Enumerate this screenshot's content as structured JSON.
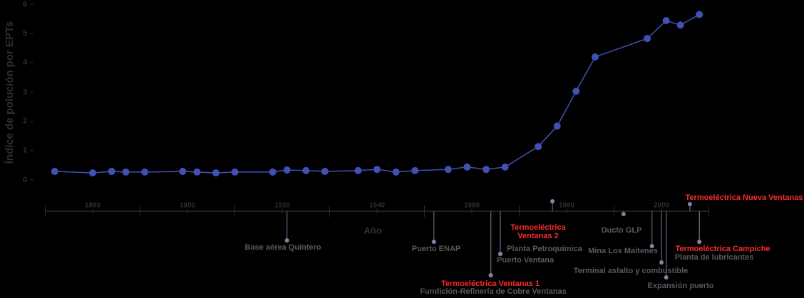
{
  "chart_data": {
    "type": "line",
    "ylabel": "Índice de polución por EPTs",
    "xlabel": "Año",
    "xlim": [
      1870,
      2010
    ],
    "ylim": [
      0,
      6
    ],
    "xticks": [
      1880,
      1900,
      1920,
      1940,
      1960,
      1980,
      2000
    ],
    "xminorticks": [
      1870,
      1890,
      1910,
      1930,
      1950,
      1970,
      1990,
      2010
    ],
    "yticks": [
      0,
      1,
      2,
      3,
      4,
      5,
      6
    ],
    "series": [
      {
        "color": "#3f51b5",
        "x": [
          1872,
          1880,
          1884,
          1887,
          1891,
          1899,
          1902,
          1906,
          1910,
          1918,
          1921,
          1925,
          1929,
          1936,
          1940,
          1944,
          1948,
          1955,
          1959,
          1963,
          1967,
          1974,
          1978,
          1982,
          1986,
          1997,
          2001,
          2004,
          2008
        ],
        "values": [
          0.29,
          0.24,
          0.29,
          0.27,
          0.27,
          0.29,
          0.27,
          0.24,
          0.27,
          0.27,
          0.34,
          0.32,
          0.29,
          0.32,
          0.36,
          0.27,
          0.32,
          0.36,
          0.44,
          0.36,
          0.44,
          1.14,
          1.84,
          3.03,
          4.2,
          4.83,
          5.44,
          5.29,
          5.65
        ]
      }
    ],
    "annotations": [
      {
        "x": 1921,
        "lines": [
          "Base aérea Quintero"
        ],
        "color": "#5a5a5a"
      },
      {
        "x": 1952,
        "lines": [
          "Puerto ENAP"
        ],
        "color": "#5a5a5a"
      },
      {
        "x": 1964,
        "lines": [
          "Termoeléctrica Ventanas 1"
        ],
        "color": "#ff2a2a"
      },
      {
        "x": 1964,
        "lines": [
          "Fundición-Refinería de Cobre Ventanas"
        ],
        "color": "#5a5a5a"
      },
      {
        "x": 1966,
        "lines": [
          "Puerto Ventana"
        ],
        "color": "#5a5a5a"
      },
      {
        "x": 1966,
        "lines": [
          "Planta Petroquímica"
        ],
        "color": "#5a5a5a"
      },
      {
        "x": 1977,
        "lines": [
          "Termoeléctrica",
          "Ventanas 2"
        ],
        "color": "#ff2a2a"
      },
      {
        "x": 1992,
        "lines": [
          "Ducto GLP"
        ],
        "color": "#5a5a5a"
      },
      {
        "x": 1998,
        "lines": [
          "Mina Los Maitenes"
        ],
        "color": "#5a5a5a"
      },
      {
        "x": 2000,
        "lines": [
          "Terminal asfalto y combustible"
        ],
        "color": "#5a5a5a"
      },
      {
        "x": 2001,
        "lines": [
          "Expansión puerto"
        ],
        "color": "#5a5a5a"
      },
      {
        "x": 2006,
        "lines": [
          "Termoeléctrica Nueva Ventanas"
        ],
        "color": "#ff2a2a"
      },
      {
        "x": 2008,
        "lines": [
          "Termoeléctrica Campiche"
        ],
        "color": "#ff2a2a"
      },
      {
        "x": 2008,
        "lines": [
          "Planta de lubricantes"
        ],
        "color": "#5a5a5a"
      }
    ]
  }
}
